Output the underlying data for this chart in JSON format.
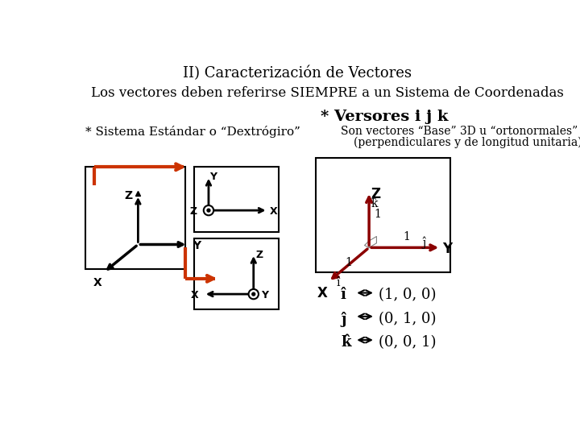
{
  "title": "II) Caracterización de Vectores",
  "line1": "Los vectores deben referirse SIEMPRE a un Sistema de Coordenadas",
  "versores_title": "* Versores i j k",
  "sistema_label": "* Sistema Estándar o “Dextrógiro”",
  "son_vectores_line1": "Son vectores “Base” 3D u “ortonormales”",
  "son_vectores_line2": "(perpendiculares y de longitud unitaria)",
  "bg_color": "#ffffff",
  "arrow_color": "#cc3300",
  "text_color": "#000000",
  "coord_i": "(1, 0, 0)",
  "coord_j": "(0, 1, 0)",
  "coord_k": "(0, 0, 1)"
}
